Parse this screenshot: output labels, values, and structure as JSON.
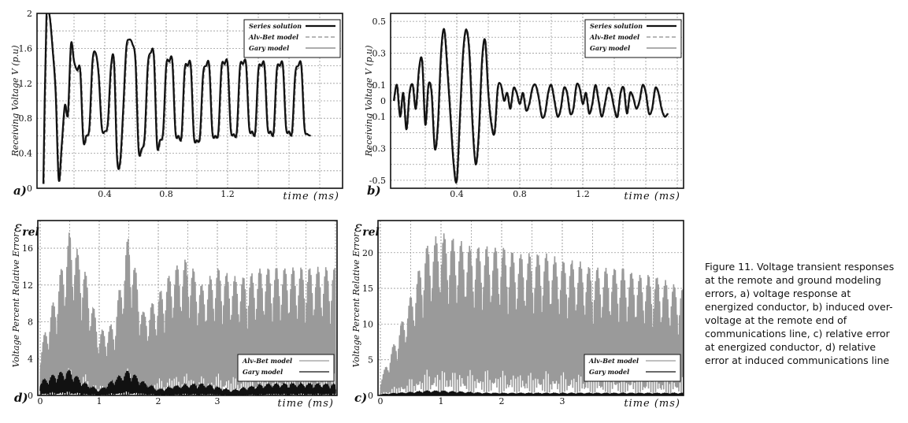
{
  "caption": "Figure 11. Voltage transient responses at the remote and ground modeling errors, a) voltage response at energized conductor, b) induced over-voltage at the remote end of communications line, c) relative error at energized conductor, d) relative error at induced communications line",
  "chart_data": [
    {
      "id": "a",
      "type": "line",
      "panel_label": "a)",
      "xlabel": "time (ms)",
      "ylabel": "Receiving Voltage V (p.u)",
      "xlim": [
        0,
        1.75
      ],
      "ylim": [
        0,
        2
      ],
      "xticks": [
        {
          "v": 0.4,
          "label": "0.4"
        },
        {
          "v": 0.8,
          "label": "0.8"
        },
        {
          "v": 1.2,
          "label": "1.2"
        }
      ],
      "yticks": [
        {
          "v": 0,
          "label": "0"
        },
        {
          "v": 0.4,
          "label": "0.4"
        },
        {
          "v": 0.8,
          "label": "0.8"
        },
        {
          "v": 1.2,
          "label": "1.2"
        },
        {
          "v": 1.6,
          "label": "1.6"
        },
        {
          "v": 2,
          "label": "2"
        }
      ],
      "grid": true,
      "legend": "top-right",
      "series": [
        {
          "name": "Series solution",
          "color": "#111111",
          "style": "solid-thick",
          "x": [
            0,
            0.02,
            0.04,
            0.06,
            0.08,
            0.1,
            0.12,
            0.14,
            0.16,
            0.18,
            0.2,
            0.22,
            0.24,
            0.26,
            0.28,
            0.3,
            0.32,
            0.34,
            0.36,
            0.38,
            0.4,
            0.42,
            0.44,
            0.46,
            0.48,
            0.5,
            0.52,
            0.54,
            0.56,
            0.58,
            0.6,
            0.62,
            0.64,
            0.66,
            0.68,
            0.7,
            0.72,
            0.74,
            0.76,
            0.78,
            0.8,
            0.82,
            0.84,
            0.86,
            0.88,
            0.9,
            0.92,
            0.94,
            0.96,
            0.98,
            1.0,
            1.02,
            1.04,
            1.06,
            1.08,
            1.1,
            1.12,
            1.14,
            1.16,
            1.18,
            1.2,
            1.22,
            1.24,
            1.26,
            1.28,
            1.3,
            1.32,
            1.34,
            1.36,
            1.38,
            1.4,
            1.42,
            1.44,
            1.46,
            1.48,
            1.5,
            1.52,
            1.54,
            1.56,
            1.58,
            1.6,
            1.62,
            1.64,
            1.66,
            1.68,
            1.7,
            1.72,
            1.74
          ],
          "values": [
            0.05,
            1.95,
            1.98,
            1.6,
            1.1,
            0.1,
            0.5,
            0.95,
            0.85,
            1.65,
            1.45,
            1.35,
            1.35,
            0.55,
            0.6,
            0.7,
            1.45,
            1.55,
            1.3,
            0.7,
            0.65,
            0.75,
            1.38,
            1.45,
            0.35,
            0.3,
            0.9,
            1.6,
            1.7,
            1.65,
            1.45,
            0.45,
            0.45,
            0.6,
            1.4,
            1.55,
            1.5,
            0.5,
            0.55,
            0.65,
            1.4,
            1.45,
            1.45,
            0.65,
            0.6,
            0.6,
            1.35,
            1.4,
            1.4,
            0.6,
            0.55,
            0.6,
            1.3,
            1.4,
            1.4,
            0.65,
            0.6,
            0.65,
            1.38,
            1.42,
            1.42,
            0.68,
            0.62,
            0.65,
            1.38,
            1.42,
            1.42,
            0.7,
            0.65,
            0.65,
            1.35,
            1.4,
            1.4,
            0.7,
            0.65,
            0.65,
            1.35,
            1.4,
            1.4,
            0.7,
            0.65,
            0.65,
            1.3,
            1.4,
            1.4,
            0.7,
            0.62,
            0.6
          ]
        },
        {
          "name": "Alv-Bet model",
          "color": "#8c8c8c",
          "style": "dashed"
        },
        {
          "name": "Gary model",
          "color": "#7a7a7a",
          "style": "solid-thin"
        }
      ]
    },
    {
      "id": "b",
      "type": "line",
      "panel_label": "b)",
      "xlabel": "time (ms)",
      "ylabel": "Receiving Voltage V (p.u)",
      "xlim": [
        0,
        1.75
      ],
      "ylim": [
        -0.55,
        0.55
      ],
      "xticks": [
        {
          "v": 0.4,
          "label": "0.4"
        },
        {
          "v": 0.8,
          "label": "0.8"
        },
        {
          "v": 1.2,
          "label": "1.2"
        }
      ],
      "yticks": [
        {
          "v": 0.5,
          "label": "0.5"
        },
        {
          "v": 0.3,
          "label": "0.3"
        },
        {
          "v": 0.1,
          "label": "0.1"
        },
        {
          "v": 0,
          "label": "0"
        },
        {
          "v": -0.1,
          "label": "-0.1"
        },
        {
          "v": -0.3,
          "label": "-0.3"
        },
        {
          "v": -0.5,
          "label": "-0.5"
        }
      ],
      "grid": true,
      "legend": "top-right",
      "series": [
        {
          "name": "Series solution",
          "color": "#111111",
          "style": "solid-thick",
          "x": [
            0,
            0.02,
            0.04,
            0.06,
            0.08,
            0.1,
            0.12,
            0.14,
            0.16,
            0.18,
            0.2,
            0.22,
            0.24,
            0.26,
            0.28,
            0.3,
            0.32,
            0.34,
            0.36,
            0.38,
            0.4,
            0.42,
            0.44,
            0.46,
            0.48,
            0.5,
            0.52,
            0.54,
            0.56,
            0.58,
            0.6,
            0.62,
            0.64,
            0.66,
            0.68,
            0.7,
            0.72,
            0.74,
            0.76,
            0.78,
            0.8,
            0.82,
            0.84,
            0.86,
            0.88,
            0.9,
            0.92,
            0.94,
            0.96,
            0.98,
            1.0,
            1.02,
            1.04,
            1.06,
            1.08,
            1.1,
            1.12,
            1.14,
            1.16,
            1.18,
            1.2,
            1.22,
            1.24,
            1.26,
            1.28,
            1.3,
            1.32,
            1.34,
            1.36,
            1.38,
            1.4,
            1.42,
            1.44,
            1.46,
            1.48,
            1.5,
            1.52,
            1.54,
            1.56,
            1.58,
            1.6,
            1.62,
            1.64,
            1.66,
            1.68,
            1.7,
            1.72,
            1.74
          ],
          "values": [
            0.0,
            0.1,
            -0.1,
            0.05,
            -0.18,
            0.05,
            0.1,
            -0.05,
            0.2,
            0.25,
            -0.15,
            0.1,
            0.05,
            -0.3,
            -0.15,
            0.3,
            0.45,
            0.2,
            -0.1,
            -0.4,
            -0.5,
            -0.1,
            0.3,
            0.45,
            0.3,
            -0.15,
            -0.4,
            -0.2,
            0.25,
            0.38,
            0.05,
            -0.15,
            -0.2,
            0.08,
            0.1,
            0.0,
            0.05,
            -0.05,
            0.08,
            0.05,
            -0.02,
            0.05,
            -0.06,
            -0.02,
            0.08,
            0.1,
            0.02,
            -0.1,
            -0.08,
            0.05,
            0.1,
            0.0,
            -0.1,
            -0.05,
            0.08,
            0.05,
            -0.08,
            -0.05,
            0.1,
            0.08,
            -0.02,
            0.05,
            -0.08,
            -0.02,
            0.1,
            0.0,
            -0.1,
            -0.02,
            0.08,
            0.05,
            -0.05,
            -0.1,
            0.05,
            0.08,
            -0.08,
            0.05,
            0.02,
            -0.05,
            0.0,
            0.1,
            0.05,
            -0.08,
            -0.05,
            0.08,
            0.05,
            -0.05,
            -0.1,
            -0.08
          ]
        },
        {
          "name": "Alv-Bet model",
          "color": "#8c8c8c",
          "style": "dashed"
        },
        {
          "name": "Gary model",
          "color": "#7a7a7a",
          "style": "solid-thin"
        }
      ]
    },
    {
      "id": "d",
      "type": "line",
      "panel_label": "d)",
      "eps_label": "ε",
      "eps_sub": "rel",
      "xlabel": "time (ms)",
      "ylabel": "Voltage Percent Relative Error",
      "xlim": [
        0,
        5.0
      ],
      "ylim": [
        0,
        19
      ],
      "xticks": [
        {
          "v": 0,
          "label": "0"
        },
        {
          "v": 1,
          "label": "1"
        },
        {
          "v": 2,
          "label": "2"
        },
        {
          "v": 3,
          "label": "3"
        }
      ],
      "yticks": [
        {
          "v": 0,
          "label": "0"
        },
        {
          "v": 4,
          "label": "4"
        },
        {
          "v": 8,
          "label": "8"
        },
        {
          "v": 12,
          "label": "12"
        },
        {
          "v": 16,
          "label": "16"
        }
      ],
      "grid": true,
      "legend": "bottom-right",
      "series": [
        {
          "name": "Alv-Bet model",
          "color": "#9a9a9a",
          "style": "oscillation",
          "x": [
            0,
            0.25,
            0.5,
            0.75,
            1.0,
            1.25,
            1.5,
            1.75,
            2.0,
            2.25,
            2.5,
            2.75,
            3.0,
            3.25,
            3.5,
            3.75,
            4.0,
            4.25,
            4.5,
            4.75,
            5.0
          ],
          "values": [
            5,
            11,
            18,
            14,
            7,
            8,
            18,
            9,
            11,
            14,
            15,
            12,
            14,
            13,
            13,
            14,
            14,
            14,
            14,
            14,
            14
          ]
        },
        {
          "name": "Gary model",
          "color": "#111111",
          "style": "oscillation",
          "x": [
            0,
            0.25,
            0.5,
            0.75,
            1.0,
            1.25,
            1.5,
            1.75,
            2.0,
            2.25,
            2.5,
            2.75,
            3.0,
            3.25,
            3.5,
            3.75,
            4.0,
            4.25,
            4.5,
            4.75,
            5.0
          ],
          "values": [
            1.5,
            2.4,
            2.8,
            1.4,
            0.5,
            1.8,
            2.8,
            1.5,
            0.6,
            1.0,
            1.2,
            1.3,
            0.9,
            0.5,
            0.9,
            1.2,
            1.3,
            1.3,
            1.3,
            1.3,
            1.2
          ]
        }
      ]
    },
    {
      "id": "c",
      "type": "line",
      "panel_label": "c)",
      "eps_label": "ε",
      "eps_sub": "rel",
      "xlabel": "time (ms)",
      "ylabel": "Voltage Percent Relative Error",
      "xlim": [
        0,
        5.0
      ],
      "ylim": [
        0,
        24.5
      ],
      "xticks": [
        {
          "v": 0,
          "label": "0"
        },
        {
          "v": 1,
          "label": "1"
        },
        {
          "v": 2,
          "label": "2"
        },
        {
          "v": 3,
          "label": "3"
        }
      ],
      "yticks": [
        {
          "v": 0,
          "label": "0"
        },
        {
          "v": 5,
          "label": "5"
        },
        {
          "v": 10,
          "label": "10"
        },
        {
          "v": 15,
          "label": "15"
        },
        {
          "v": 20,
          "label": "20"
        }
      ],
      "grid": true,
      "legend": "bottom-right",
      "series": [
        {
          "name": "Alv-Bet model",
          "color": "#9a9a9a",
          "style": "oscillation",
          "x": [
            0,
            0.25,
            0.5,
            0.75,
            1.0,
            1.25,
            1.5,
            1.75,
            2.0,
            2.25,
            2.5,
            2.75,
            3.0,
            3.25,
            3.5,
            3.75,
            4.0,
            4.25,
            4.5,
            4.75,
            5.0
          ],
          "values": [
            2,
            8,
            14,
            21,
            23,
            22,
            21,
            21,
            21,
            20,
            20,
            20,
            19,
            19,
            18,
            18,
            18,
            17,
            17,
            16,
            15
          ]
        },
        {
          "name": "Gary model",
          "color": "#111111",
          "style": "oscillation",
          "x": [
            0,
            0.25,
            0.5,
            0.75,
            1.0,
            1.25,
            1.5,
            1.75,
            2.0,
            2.25,
            2.5,
            2.75,
            3.0,
            3.25,
            3.5,
            3.75,
            4.0,
            4.25,
            4.5,
            4.75,
            5.0
          ],
          "values": [
            0.1,
            0.3,
            0.4,
            0.6,
            0.6,
            0.5,
            0.4,
            0.3,
            0.3,
            0.3,
            0.3,
            0.3,
            0.3,
            0.3,
            0.3,
            0.3,
            0.3,
            0.3,
            0.3,
            0.3,
            0.3
          ]
        }
      ]
    }
  ]
}
